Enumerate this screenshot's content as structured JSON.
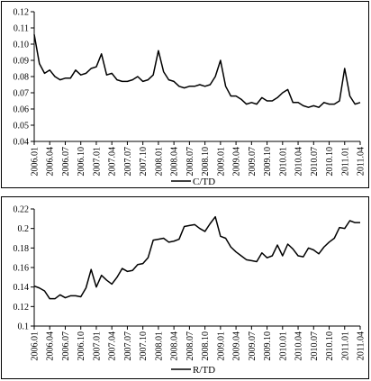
{
  "chart_data": [
    {
      "type": "line",
      "title": "",
      "xlabel": "",
      "ylabel": "",
      "ylim": [
        0.04,
        0.12
      ],
      "yticks": [
        "0.04",
        "0.05",
        "0.06",
        "0.07",
        "0.08",
        "0.09",
        "0.10",
        "0.11",
        "0.12"
      ],
      "xtick_labels": [
        "2006.01",
        "2006.04",
        "2006.07",
        "2006.10",
        "2007.01",
        "2007.04",
        "2007.07",
        "2007.10",
        "2008.01",
        "2008.04",
        "2008.07",
        "2008.10",
        "2009.01",
        "2009.04",
        "2009.07",
        "2009.10",
        "2010.01",
        "2010.04",
        "2010.07",
        "2010.10",
        "2011.01",
        "2011.04"
      ],
      "grid": false,
      "legend_position": "bottom-center",
      "series": [
        {
          "name": "C/TD",
          "color": "#000000",
          "values": [
            0.106,
            0.088,
            0.082,
            0.084,
            0.08,
            0.078,
            0.079,
            0.079,
            0.084,
            0.081,
            0.082,
            0.085,
            0.086,
            0.094,
            0.081,
            0.082,
            0.078,
            0.077,
            0.077,
            0.078,
            0.08,
            0.077,
            0.078,
            0.081,
            0.096,
            0.083,
            0.078,
            0.077,
            0.074,
            0.073,
            0.074,
            0.074,
            0.075,
            0.074,
            0.075,
            0.08,
            0.09,
            0.074,
            0.068,
            0.068,
            0.066,
            0.063,
            0.064,
            0.063,
            0.067,
            0.065,
            0.065,
            0.067,
            0.07,
            0.072,
            0.064,
            0.064,
            0.062,
            0.061,
            0.062,
            0.061,
            0.064,
            0.063,
            0.063,
            0.065,
            0.085,
            0.068,
            0.063,
            0.064
          ]
        }
      ]
    },
    {
      "type": "line",
      "title": "",
      "xlabel": "",
      "ylabel": "",
      "ylim": [
        0.1,
        0.22
      ],
      "yticks": [
        "0.1",
        "0.12",
        "0.14",
        "0.16",
        "0.18",
        "0.2",
        "0.22"
      ],
      "xtick_labels": [
        "2006.01",
        "2006.04",
        "2006.07",
        "2006.10",
        "2007.01",
        "2007.04",
        "2007.07",
        "2007.10",
        "2008.01",
        "2008.04",
        "2008.07",
        "2008.10",
        "2009.01",
        "2009.04",
        "2009.07",
        "2009.10",
        "2010.01",
        "2010.04",
        "2010.07",
        "2010.10",
        "2011.01",
        "2011.04"
      ],
      "grid": false,
      "legend_position": "bottom-center",
      "series": [
        {
          "name": "R/TD",
          "color": "#000000",
          "values": [
            0.141,
            0.139,
            0.136,
            0.128,
            0.128,
            0.132,
            0.129,
            0.131,
            0.131,
            0.13,
            0.139,
            0.158,
            0.14,
            0.152,
            0.147,
            0.143,
            0.15,
            0.159,
            0.156,
            0.157,
            0.163,
            0.164,
            0.17,
            0.188,
            0.189,
            0.19,
            0.186,
            0.187,
            0.189,
            0.202,
            0.203,
            0.204,
            0.2,
            0.197,
            0.205,
            0.212,
            0.192,
            0.19,
            0.181,
            0.176,
            0.172,
            0.168,
            0.167,
            0.166,
            0.175,
            0.17,
            0.172,
            0.183,
            0.172,
            0.184,
            0.179,
            0.172,
            0.171,
            0.18,
            0.178,
            0.174,
            0.181,
            0.186,
            0.19,
            0.201,
            0.2,
            0.208,
            0.206,
            0.206
          ]
        }
      ]
    }
  ]
}
